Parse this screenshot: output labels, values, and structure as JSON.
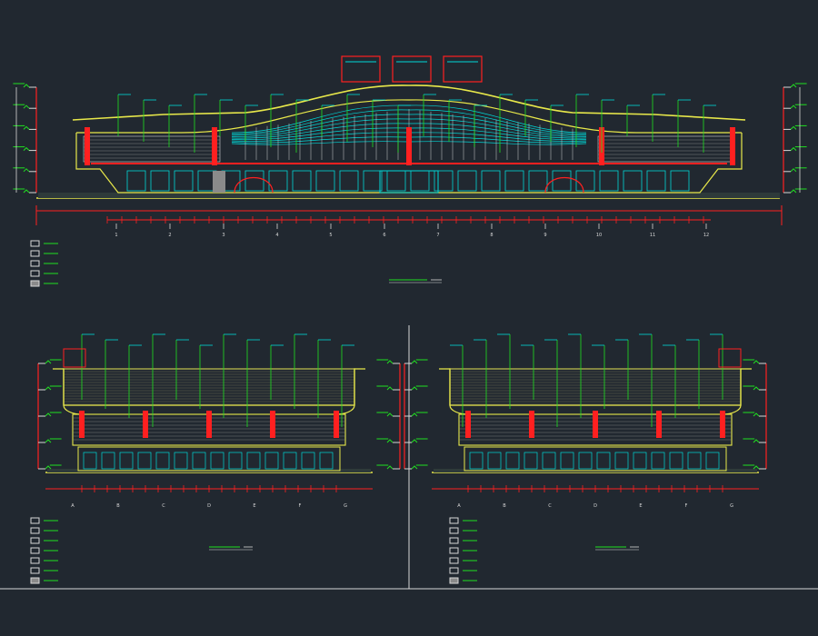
{
  "colors": {
    "background": "#212830",
    "outline": "#e8e84a",
    "glazing": "#00d7d7",
    "grid": "#d8d8d8",
    "dimension": "#ff2020",
    "leader": "#20e020",
    "mullion": "#cfcfcf"
  },
  "elevations": [
    {
      "name": "main-elevation",
      "axis_marks": [
        "1",
        "2",
        "3",
        "4",
        "5",
        "6",
        "7",
        "8",
        "9",
        "10",
        "11",
        "12"
      ]
    },
    {
      "name": "left-elevation",
      "axis_marks": [
        "A",
        "B",
        "C",
        "D",
        "E",
        "F",
        "G"
      ]
    },
    {
      "name": "right-elevation",
      "axis_marks": [
        "G",
        "F",
        "E",
        "D",
        "C",
        "B",
        "A"
      ]
    }
  ]
}
